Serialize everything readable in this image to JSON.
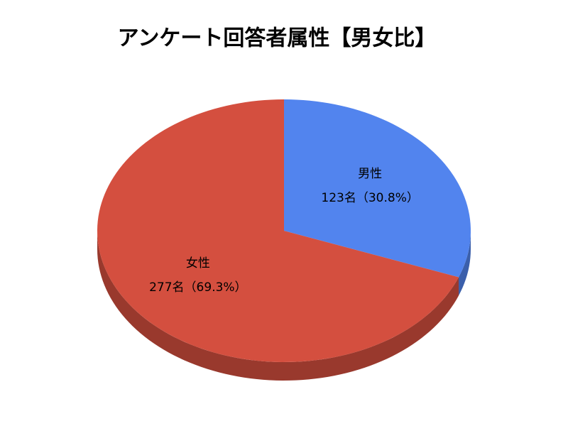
{
  "chart_data": {
    "type": "pie",
    "title": "アンケート回答者属性【男女比】",
    "categories": [
      "男性",
      "女性"
    ],
    "values": [
      123,
      277
    ],
    "value_labels": [
      "123名（30.8%）",
      "277名（69.3%）"
    ],
    "colors": [
      "#5284ee",
      "#d44f3f"
    ]
  }
}
